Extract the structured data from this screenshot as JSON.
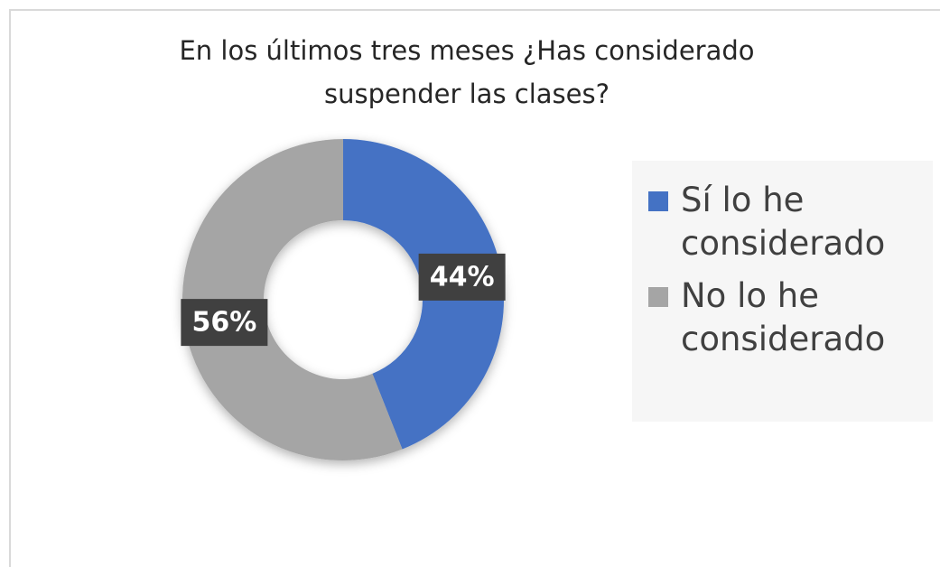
{
  "chart_data": {
    "type": "pie",
    "donut": true,
    "title": "En los últimos tres meses ¿Has considerado suspender las clases?",
    "categories": [
      "Sí lo he considerado",
      "No lo he considerado"
    ],
    "values": [
      44,
      56
    ],
    "value_labels": [
      "44%",
      "56%"
    ],
    "colors": [
      "#4472c4",
      "#a5a5a5"
    ],
    "legend": "right"
  }
}
